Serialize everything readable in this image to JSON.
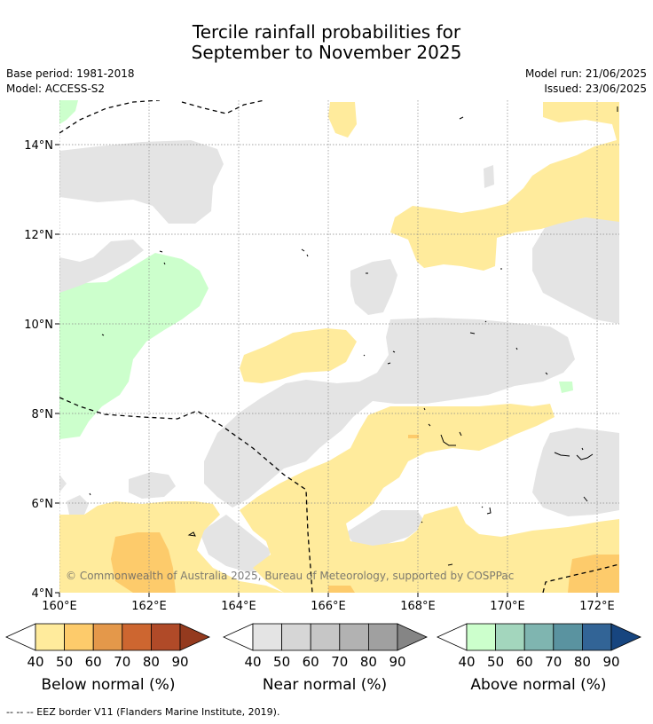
{
  "title_line1": "Tercile rainfall probabilities for",
  "title_line2": "September to November 2025",
  "base_period": "Base period: 1981-2018",
  "model": "Model: ACCESS-S2",
  "model_run": "Model run: 21/06/2025",
  "issued": "Issued: 23/06/2025",
  "copyright": "© Commonwealth of Australia 2025, Bureau of Meteorology, supported by COSPPac",
  "lat_labels": [
    "14°N",
    "12°N",
    "10°N",
    "8°N",
    "6°N",
    "4°N"
  ],
  "lon_labels": [
    "160°E",
    "162°E",
    "164°E",
    "166°E",
    "168°E",
    "170°E",
    "172°E"
  ],
  "colorbars": [
    {
      "label": "Below normal (%)",
      "ticks": [
        "40",
        "50",
        "60",
        "70",
        "80",
        "90"
      ],
      "colors": [
        "#ffeb9c",
        "#fdcb6b",
        "#e4984a",
        "#cd6630",
        "#b04a28",
        "#943a1e"
      ]
    },
    {
      "label": "Near normal (%)",
      "ticks": [
        "40",
        "50",
        "60",
        "70",
        "80",
        "90"
      ],
      "colors": [
        "#e4e4e4",
        "#d6d6d6",
        "#c6c6c6",
        "#b2b2b2",
        "#a0a0a0",
        "#858585"
      ]
    },
    {
      "label": "Above normal (%)",
      "ticks": [
        "40",
        "50",
        "60",
        "70",
        "80",
        "90"
      ],
      "colors": [
        "#ccffcc",
        "#a3d6bd",
        "#7fb5b0",
        "#5a93a0",
        "#326496",
        "#17457f"
      ]
    }
  ],
  "footnote": "--  --  -- EEZ border V11 (Flanders Marine Institute, 2019)."
}
